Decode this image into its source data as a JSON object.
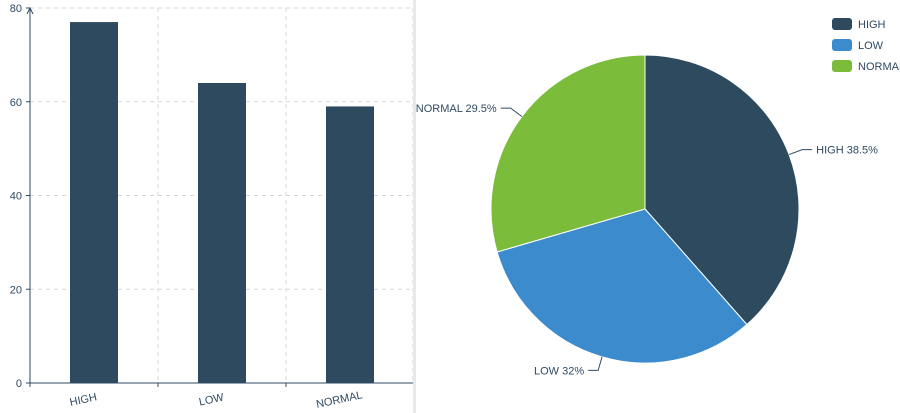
{
  "colors": {
    "axis": "#2f4a63",
    "grid": "#d6d6d6",
    "text": "#2f4a63",
    "high": "#2d4a5f",
    "low": "#3b8bcd",
    "normal": "#7bbd3a"
  },
  "chart_data": [
    {
      "type": "bar",
      "categories": [
        "HIGH",
        "LOW",
        "NORMAL"
      ],
      "values": [
        77,
        64,
        59
      ],
      "ylim": [
        0,
        80
      ],
      "yticks": [
        "0",
        "20",
        "40",
        "60",
        "80"
      ],
      "ytick_values": [
        0,
        20,
        40,
        60,
        80
      ],
      "grid": true,
      "title": "",
      "xlabel": "",
      "ylabel": ""
    },
    {
      "type": "pie",
      "categories": [
        "HIGH",
        "LOW",
        "NORMAL"
      ],
      "values": [
        38.5,
        32,
        29.5
      ],
      "labels": [
        "HIGH 38.5%",
        "LOW 32%",
        "NORMAL 29.5%"
      ],
      "legend": [
        "HIGH",
        "LOW",
        "NORMAL"
      ],
      "legend_position": "top-right"
    }
  ]
}
